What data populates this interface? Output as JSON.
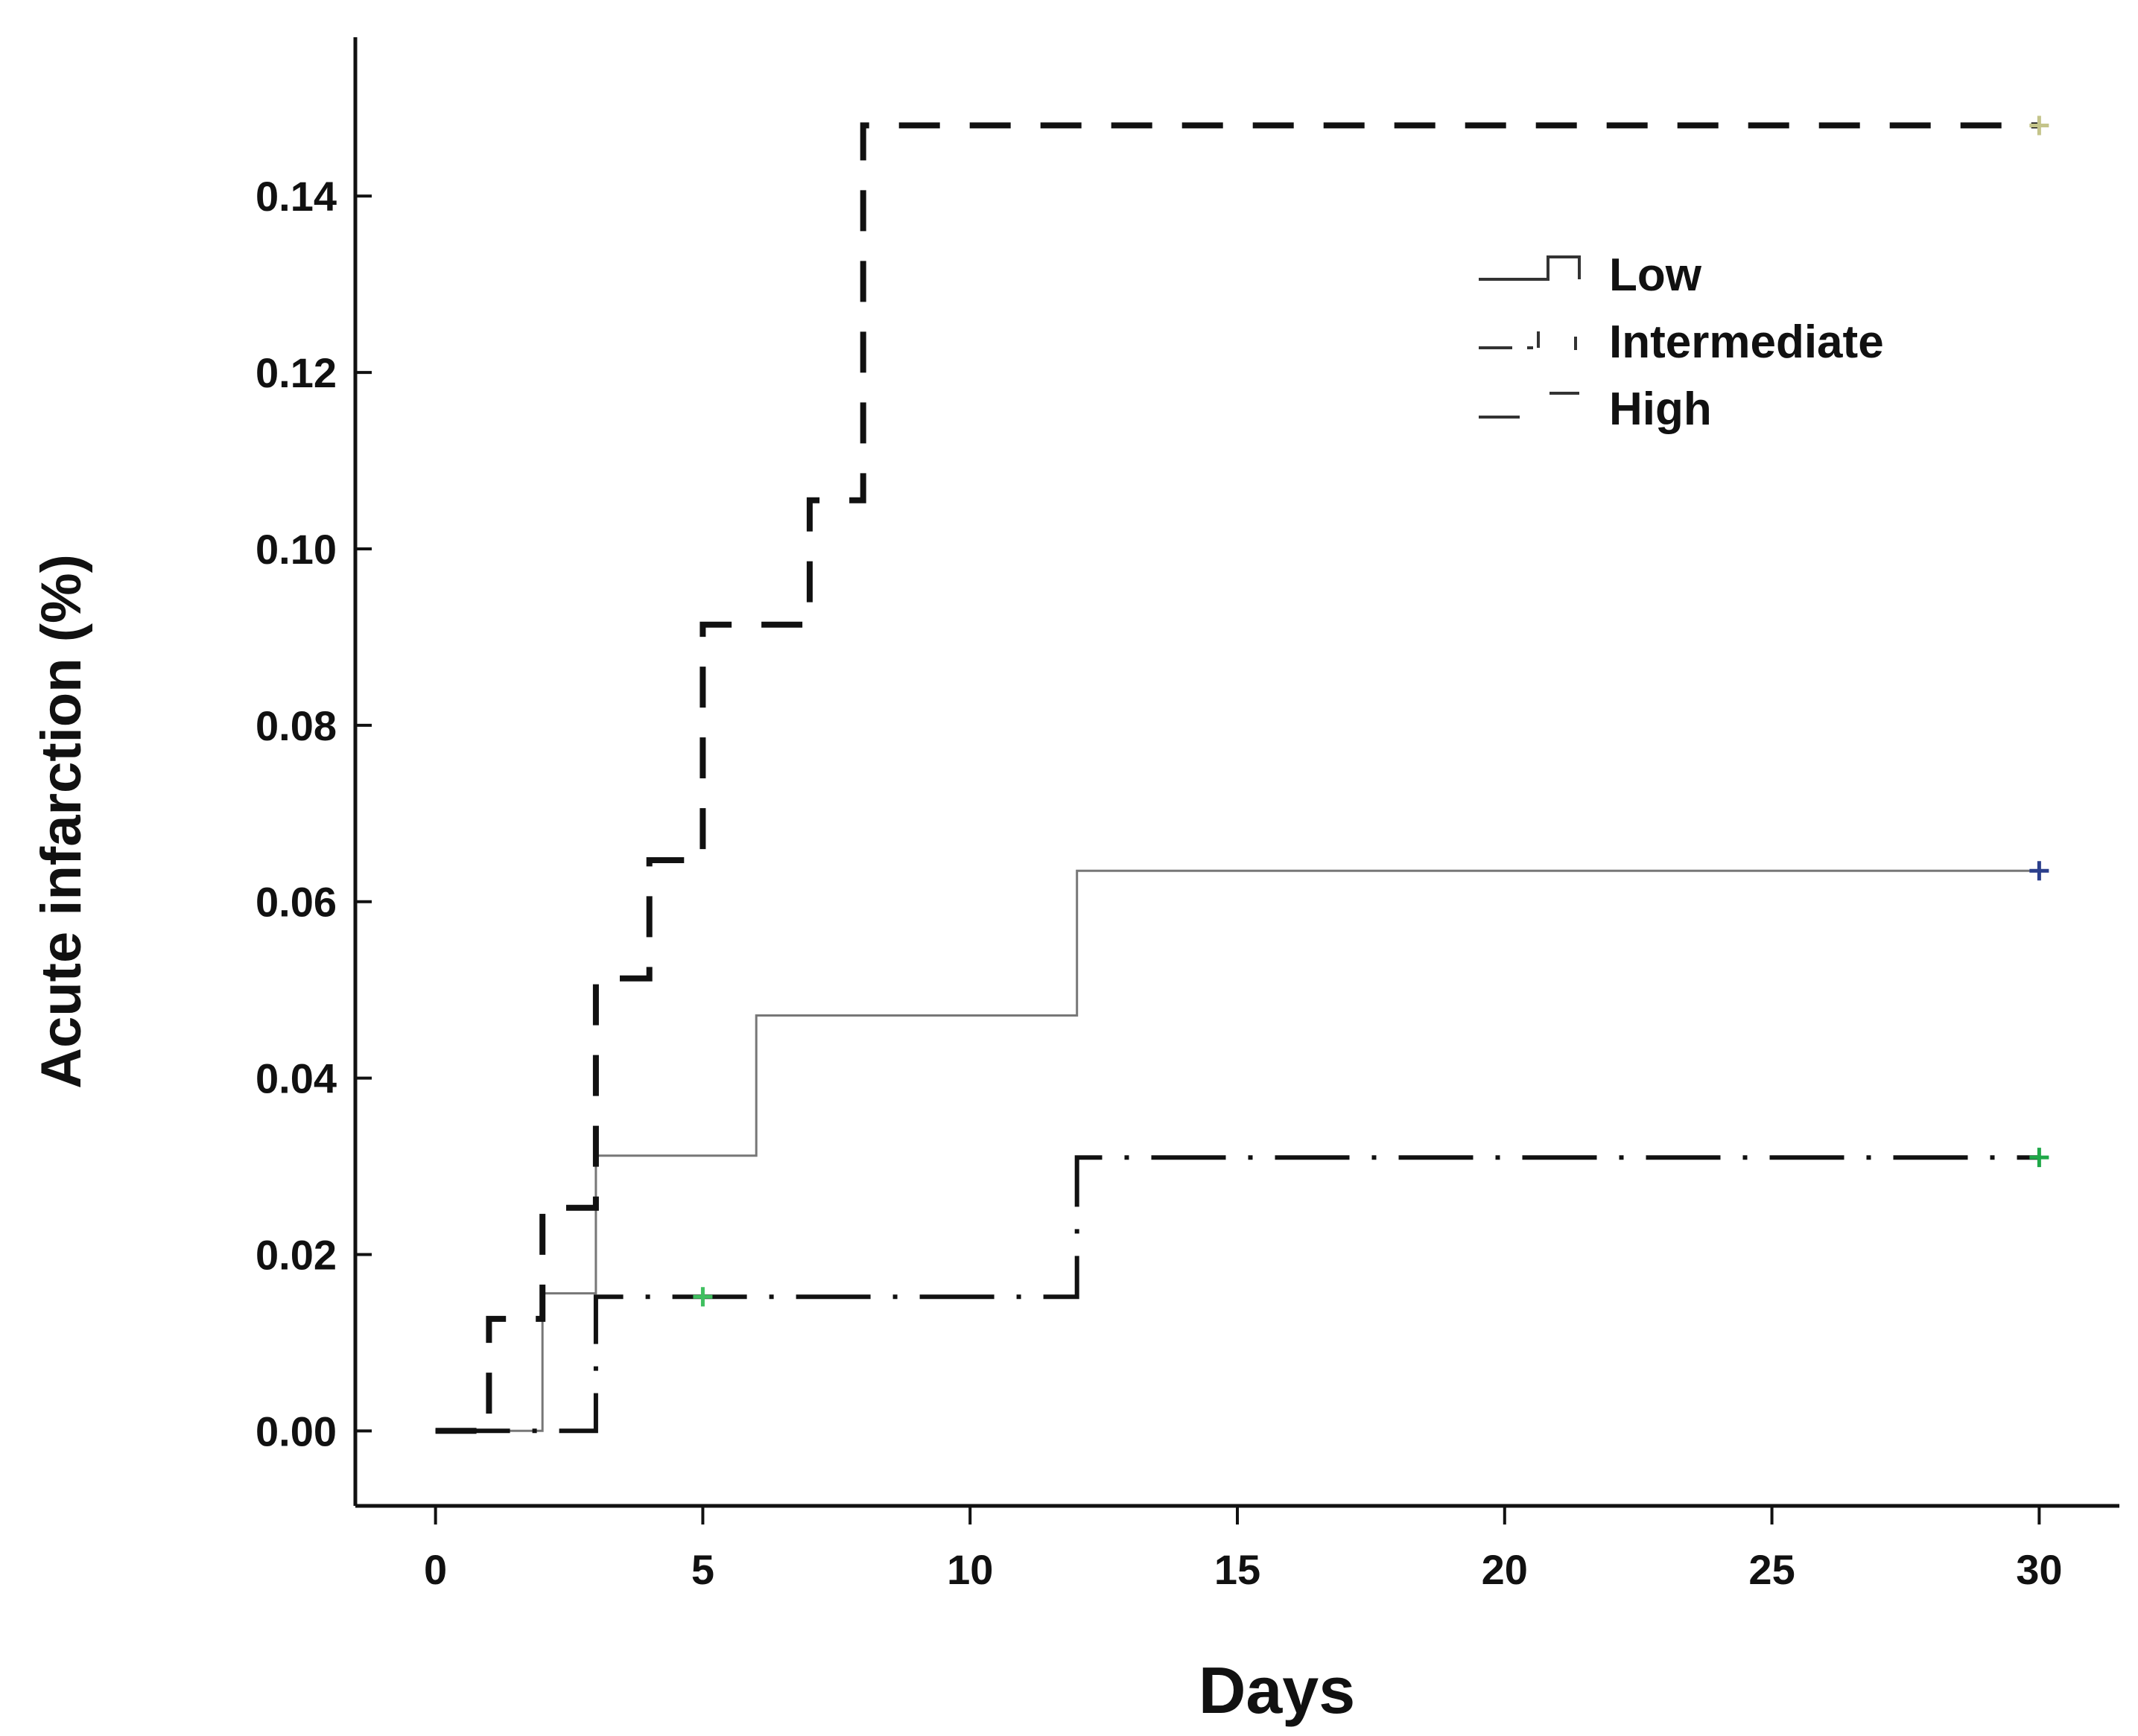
{
  "chart_data": {
    "type": "line",
    "step": true,
    "xlabel": "Days",
    "ylabel": "Acute infarction (%)",
    "xlim": [
      -1.5,
      31.5
    ],
    "ylim": [
      -0.0085,
      0.158
    ],
    "x_ticks": [
      0,
      5,
      10,
      15,
      20,
      25,
      30
    ],
    "x_tick_labels": [
      "0",
      "5",
      "10",
      "15",
      "20",
      "25",
      "30"
    ],
    "y_ticks": [
      0.0,
      0.02,
      0.04,
      0.06,
      0.08,
      0.1,
      0.12,
      0.14
    ],
    "y_tick_labels": [
      "0.00",
      "0.02",
      "0.04",
      "0.06",
      "0.08",
      "0.10",
      "0.12",
      "0.14"
    ],
    "grid": false,
    "legend_position": "top-right",
    "series": [
      {
        "name": "Low",
        "line_style": "solid",
        "color": "#777777",
        "points": [
          [
            0,
            0.0
          ],
          [
            2,
            0.0
          ],
          [
            2,
            0.0156
          ],
          [
            3,
            0.0156
          ],
          [
            3,
            0.0312
          ],
          [
            6,
            0.0312
          ],
          [
            6,
            0.0471
          ],
          [
            12,
            0.0471
          ],
          [
            12,
            0.0635
          ],
          [
            30,
            0.0635
          ]
        ],
        "censor_marks": [
          {
            "x": 30,
            "y": 0.0635,
            "color": "#2b3f8c"
          }
        ]
      },
      {
        "name": "Intermediate",
        "line_style": "dash-dot",
        "color": "#111111",
        "points": [
          [
            0,
            0.0
          ],
          [
            3,
            0.0
          ],
          [
            3,
            0.0152
          ],
          [
            12,
            0.0152
          ],
          [
            12,
            0.031
          ],
          [
            30,
            0.031
          ]
        ],
        "censor_marks": [
          {
            "x": 5,
            "y": 0.0152,
            "color": "#3fbf5f"
          },
          {
            "x": 30,
            "y": 0.031,
            "color": "#1fa848"
          }
        ]
      },
      {
        "name": "High",
        "line_style": "dashed",
        "color": "#111111",
        "points": [
          [
            0,
            0.0
          ],
          [
            1,
            0.0
          ],
          [
            1,
            0.0127
          ],
          [
            2,
            0.0127
          ],
          [
            2,
            0.0253
          ],
          [
            3,
            0.0253
          ],
          [
            3,
            0.0513
          ],
          [
            4,
            0.0513
          ],
          [
            4,
            0.0647
          ],
          [
            5,
            0.0647
          ],
          [
            5,
            0.0914
          ],
          [
            7,
            0.0914
          ],
          [
            7,
            0.1055
          ],
          [
            8,
            0.1055
          ],
          [
            8,
            0.148
          ],
          [
            30,
            0.148
          ]
        ],
        "censor_marks": [
          {
            "x": 30,
            "y": 0.148,
            "color": "#c4c48a"
          }
        ]
      }
    ]
  }
}
